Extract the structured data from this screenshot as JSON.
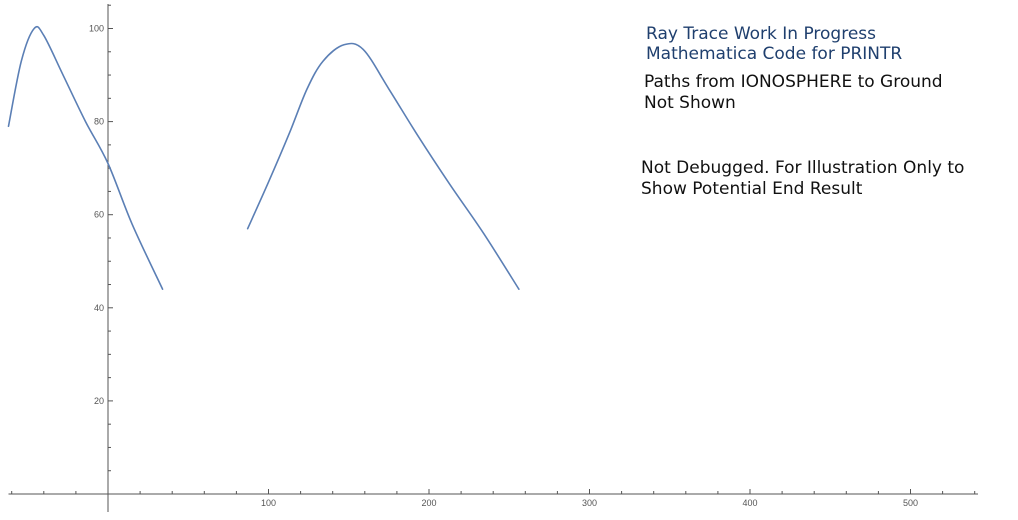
{
  "chart_data": {
    "type": "line",
    "xlim": [
      -62,
      543
    ],
    "ylim": [
      0,
      106
    ],
    "x_ticks": [
      100,
      200,
      300,
      400,
      500
    ],
    "y_ticks": [
      20,
      40,
      60,
      80,
      100
    ],
    "grid": false,
    "series": [
      {
        "points": [
          [
            -62,
            79
          ],
          [
            -54,
            93
          ],
          [
            -46,
            100
          ],
          [
            -40,
            98.5
          ],
          [
            -28,
            90
          ],
          [
            -14,
            80
          ],
          [
            0,
            71
          ],
          [
            15,
            58
          ],
          [
            34,
            44
          ]
        ]
      },
      {
        "points": [
          [
            87,
            57
          ],
          [
            100,
            67
          ],
          [
            113,
            77.5
          ],
          [
            124,
            87
          ],
          [
            134,
            93
          ],
          [
            147,
            96.5
          ],
          [
            159,
            95.5
          ],
          [
            175,
            87
          ],
          [
            193,
            77
          ],
          [
            213,
            66.5
          ],
          [
            234,
            56
          ],
          [
            256,
            44
          ]
        ]
      }
    ]
  },
  "annotations": {
    "title_line1": "Ray Trace Work In Progress",
    "title_line2": "Mathematica Code for PRINTR",
    "paths_note": "Paths from IONOSPHERE to Ground\nNot Shown",
    "debug_note": "Not Debugged. For Illustration Only to\nShow Potential End Result"
  },
  "colors": {
    "curve": "#5b7fb5",
    "title_text": "#1f3f6e",
    "note_text": "#111111",
    "axis": "#555555"
  }
}
